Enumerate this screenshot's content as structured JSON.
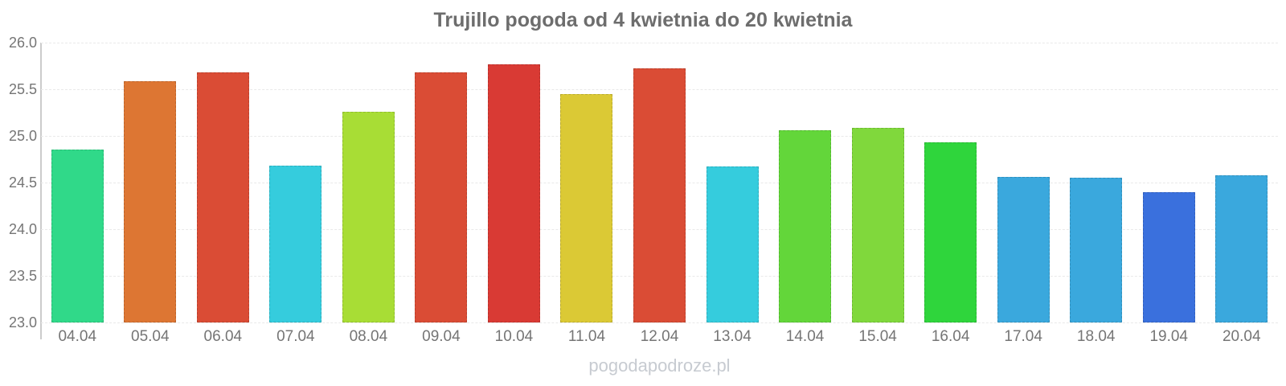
{
  "chart_data": {
    "type": "bar",
    "title": "Trujillo pogoda od 4 kwietnia do 20 kwietnia",
    "xlabel": "",
    "ylabel": "",
    "categories": [
      "04.04",
      "05.04",
      "06.04",
      "07.04",
      "08.04",
      "09.04",
      "10.04",
      "11.04",
      "12.04",
      "13.04",
      "14.04",
      "15.04",
      "16.04",
      "17.04",
      "18.04",
      "19.04",
      "20.04"
    ],
    "values": [
      24.85,
      25.59,
      25.68,
      24.68,
      25.26,
      25.68,
      25.77,
      25.45,
      25.72,
      24.67,
      25.06,
      25.09,
      24.93,
      24.56,
      24.55,
      24.4,
      24.58
    ],
    "bar_colors": [
      "#30d989",
      "#dd7633",
      "#da4c35",
      "#35ccdd",
      "#a8dd35",
      "#da4c35",
      "#d93a34",
      "#dbc935",
      "#da4c35",
      "#35ccdd",
      "#63d63a",
      "#80d83c",
      "#2fd53c",
      "#3aa8dd",
      "#3aa8dd",
      "#3a70dd",
      "#3aa8dd"
    ],
    "ylim": [
      23.0,
      26.0
    ],
    "y_ticks": [
      "26.0",
      "25.5",
      "25.0",
      "24.5",
      "24.0",
      "23.5",
      "23.0"
    ],
    "grid": "on",
    "legend": "none",
    "watermark": "pogodapodroze.pl",
    "colors": {
      "title": "#6d6d6d",
      "axis_labels": "#757575",
      "axis_line": "#cccccc",
      "gridline": "#e9e9e9",
      "watermark": "#c7cbd1",
      "background": "#ffffff"
    }
  }
}
